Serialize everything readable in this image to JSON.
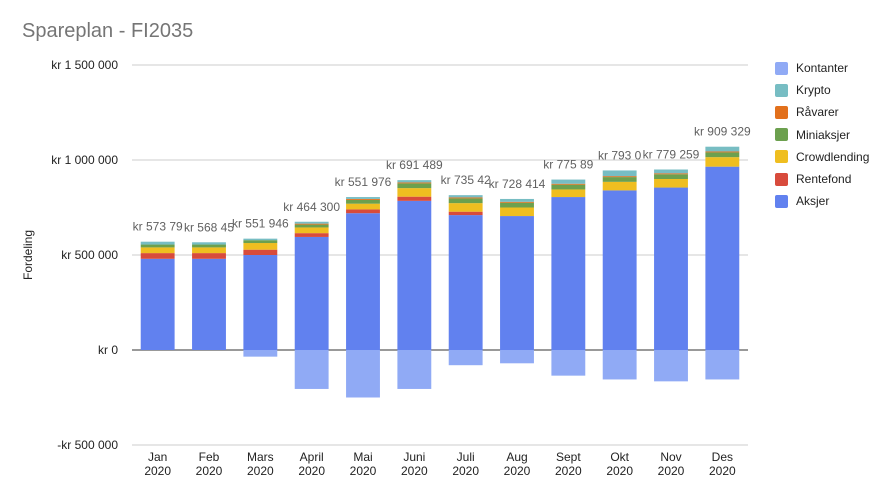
{
  "chart_data": {
    "type": "bar",
    "stacked": true,
    "title": "Spareplan - FI2035",
    "ylabel": "Fordeling",
    "ylim": [
      -500000,
      1500000
    ],
    "yticks": [
      {
        "value": -500000,
        "label": "-kr 500 000"
      },
      {
        "value": 0,
        "label": "kr   0"
      },
      {
        "value": 500000,
        "label": "kr 500 000"
      },
      {
        "value": 1000000,
        "label": "kr 1 000 000"
      },
      {
        "value": 1500000,
        "label": "kr 1 500 000"
      }
    ],
    "categories": [
      [
        "Jan",
        "2020"
      ],
      [
        "Feb",
        "2020"
      ],
      [
        "Mars",
        "2020"
      ],
      [
        "April",
        "2020"
      ],
      [
        "Mai",
        "2020"
      ],
      [
        "Juni",
        "2020"
      ],
      [
        "Juli",
        "2020"
      ],
      [
        "Aug",
        "2020"
      ],
      [
        "Sept",
        "2020"
      ],
      [
        "Okt",
        "2020"
      ],
      [
        "Nov",
        "2020"
      ],
      [
        "Des",
        "2020"
      ]
    ],
    "grid": true,
    "legend_position": "right",
    "series": [
      {
        "name": "Aksjer",
        "color": "#6181ef",
        "values": [
          480000,
          480000,
          500000,
          595000,
          720000,
          785000,
          710000,
          705000,
          805000,
          840000,
          855000,
          965000
        ]
      },
      {
        "name": "Rentefond",
        "color": "#d84b3c",
        "values": [
          30000,
          30000,
          28000,
          20000,
          20000,
          22000,
          18000,
          0,
          0,
          0,
          0,
          0
        ]
      },
      {
        "name": "Crowdlending",
        "color": "#efbe20",
        "values": [
          30000,
          30000,
          35000,
          30000,
          30000,
          45000,
          45000,
          45000,
          40000,
          45000,
          45000,
          50000
        ]
      },
      {
        "name": "Miniaksjer",
        "color": "#6ca04e",
        "values": [
          15000,
          15000,
          15000,
          15000,
          20000,
          25000,
          25000,
          25000,
          25000,
          25000,
          25000,
          25000
        ]
      },
      {
        "name": "Råvarer",
        "color": "#e2701c",
        "values": [
          0,
          0,
          0,
          5000,
          5000,
          5000,
          5000,
          5000,
          5000,
          5000,
          5000,
          5000
        ]
      },
      {
        "name": "Krypto",
        "color": "#77bdc3",
        "values": [
          15000,
          12000,
          8000,
          10000,
          10000,
          12000,
          12000,
          15000,
          22000,
          30000,
          20000,
          25000
        ]
      },
      {
        "name": "Kontanter",
        "color": "#90aaf5",
        "values": [
          0,
          0,
          -35000,
          -205000,
          -250000,
          -205000,
          -80000,
          -70000,
          -135000,
          -155000,
          -165000,
          -155000
        ]
      }
    ],
    "data_labels": [
      "kr 573 79",
      "kr 568 45",
      "kr 551 946",
      "kr 464 300",
      "kr 551 976",
      "kr 691 489",
      "kr 735 42",
      "kr 728 414",
      "kr 775 89",
      "kr 793 0",
      "kr 779 259",
      "kr 909 329"
    ],
    "legend_order": [
      "Kontanter",
      "Krypto",
      "Råvarer",
      "Miniaksjer",
      "Crowdlending",
      "Rentefond",
      "Aksjer"
    ]
  }
}
